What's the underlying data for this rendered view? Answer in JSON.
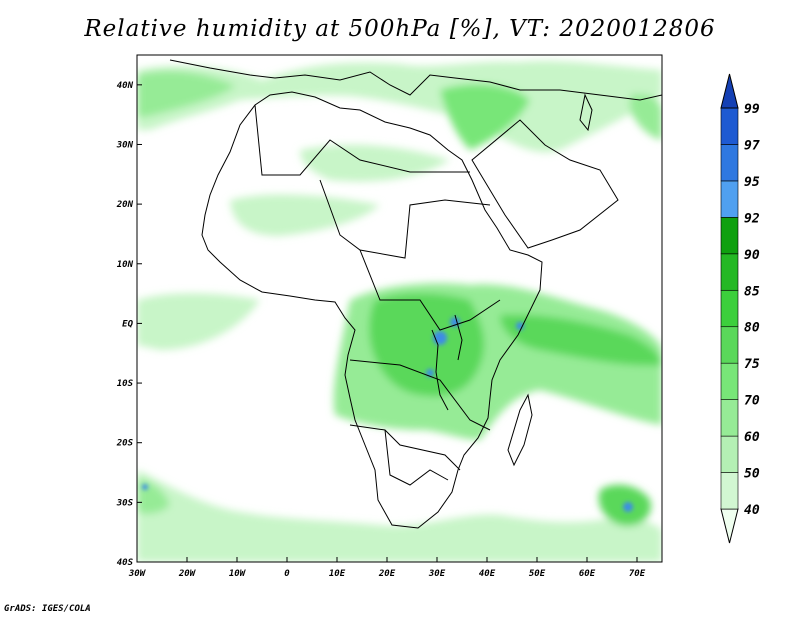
{
  "title": "Relative humidity at 500hPa [%], VT: 2020012806",
  "credit": "GrADS: IGES/COLA",
  "map": {
    "lon_range": [
      -30,
      75
    ],
    "lat_range": [
      -40,
      45
    ],
    "lon_ticks": [
      {
        "value": -30,
        "label": "30W"
      },
      {
        "value": -20,
        "label": "20W"
      },
      {
        "value": -10,
        "label": "10W"
      },
      {
        "value": 0,
        "label": "0"
      },
      {
        "value": 10,
        "label": "10E"
      },
      {
        "value": 20,
        "label": "20E"
      },
      {
        "value": 30,
        "label": "30E"
      },
      {
        "value": 40,
        "label": "40E"
      },
      {
        "value": 50,
        "label": "50E"
      },
      {
        "value": 60,
        "label": "60E"
      },
      {
        "value": 70,
        "label": "70E"
      }
    ],
    "lat_ticks": [
      {
        "value": 40,
        "label": "40N"
      },
      {
        "value": 30,
        "label": "30N"
      },
      {
        "value": 20,
        "label": "20N"
      },
      {
        "value": 10,
        "label": "10N"
      },
      {
        "value": 0,
        "label": "EQ"
      },
      {
        "value": -10,
        "label": "10S"
      },
      {
        "value": -20,
        "label": "20S"
      },
      {
        "value": -30,
        "label": "30S"
      },
      {
        "value": -40,
        "label": "40S"
      }
    ]
  },
  "colorbar": {
    "levels": [
      "40",
      "50",
      "60",
      "70",
      "75",
      "80",
      "85",
      "90",
      "92",
      "95",
      "97",
      "99"
    ],
    "colors": [
      "#f0fff0",
      "#d2f7d2",
      "#b4f0b4",
      "#96eb96",
      "#78e678",
      "#5ad85a",
      "#3ccf3c",
      "#24b824",
      "#0fa00f",
      "#50a0f0",
      "#2f78e0",
      "#1e5ad2",
      "#1440b4"
    ]
  },
  "colors": {
    "coast": "#000000",
    "green_light": "#c8f5c8",
    "green_mid": "#78e678",
    "green_dark": "#3ccf3c",
    "blue": "#3c8ce6"
  }
}
